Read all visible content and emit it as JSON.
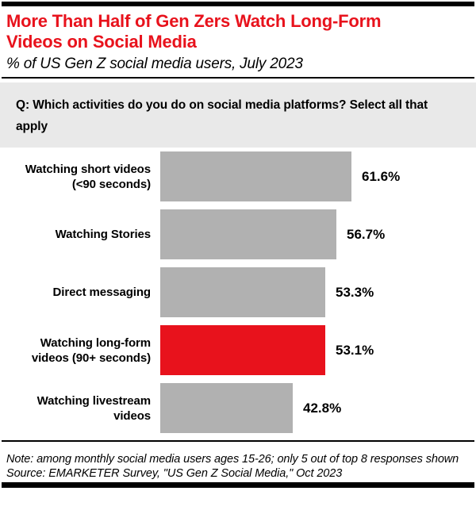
{
  "header": {
    "title": "More Than Half of Gen Zers Watch Long-Form Videos on Social Media",
    "subtitle": "% of US Gen Z social media users, July 2023"
  },
  "question": "Q: Which activities do you do on social media platforms? Select all that apply",
  "chart_data": {
    "type": "bar",
    "orientation": "horizontal",
    "title": "More Than Half of Gen Zers Watch Long-Form Videos on Social Media",
    "subtitle": "% of US Gen Z social media users, July 2023",
    "categories": [
      "Watching short videos (<90 seconds)",
      "Watching Stories",
      "Direct messaging",
      "Watching long-form videos (90+ seconds)",
      "Watching livestream videos"
    ],
    "values": [
      61.6,
      56.7,
      53.3,
      53.1,
      42.8
    ],
    "value_labels": [
      "61.6%",
      "56.7%",
      "53.3%",
      "53.1%",
      "42.8%"
    ],
    "unit": "%",
    "highlighted_index": 3,
    "bar_color": "#b1b1b1",
    "highlight_color": "#e8121c",
    "xlim": [
      0,
      70
    ],
    "grid": false,
    "legend": false,
    "value_labels_position": "outside-end"
  },
  "footer": {
    "note": "Note: among monthly social media users ages 15-26; only 5 out of top 8 responses shown",
    "source": "Source: EMARKETER Survey, \"US Gen Z Social Media,\" Oct 2023"
  },
  "colors": {
    "accent_red": "#e8121c",
    "bar_gray": "#b1b1b1",
    "question_bg": "#e9e9e9",
    "rule_black": "#000000"
  }
}
